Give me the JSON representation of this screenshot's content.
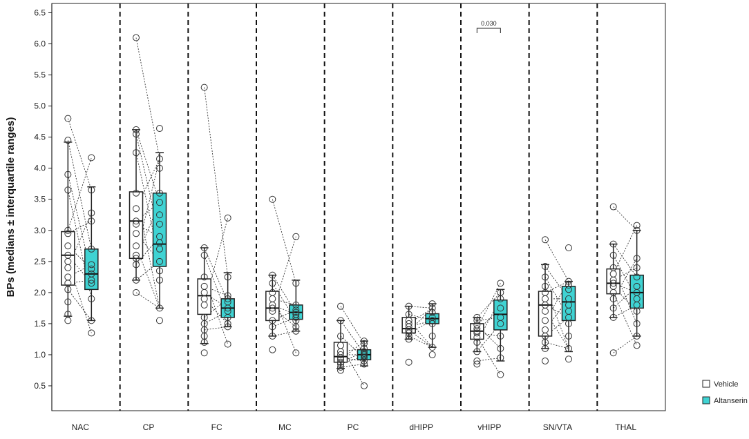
{
  "chart_data": {
    "type": "box",
    "ylabel": "BPs (medians ± interquartile ranges)",
    "ylim": [
      0.1,
      6.65
    ],
    "yticks": [
      "0.5",
      "1.0",
      "1.5",
      "2.0",
      "2.5",
      "3.0",
      "3.5",
      "4.0",
      "4.5",
      "5.0",
      "5.5",
      "6.0",
      "6.5"
    ],
    "grid": false,
    "legend_position": "bottom-right",
    "series": [
      {
        "name": "Vehicle",
        "color": "#ffffff"
      },
      {
        "name": "Altanserin",
        "color": "#3fd3d3"
      }
    ],
    "categories": [
      "NAC",
      "CP",
      "FC",
      "MC",
      "PC",
      "dHIPP",
      "vHIPP",
      "SN/VTA",
      "THAL"
    ],
    "groups": [
      {
        "category": "NAC",
        "vehicle": {
          "whisker_low": 1.62,
          "q1": 2.12,
          "median": 2.6,
          "q3": 2.98,
          "whisker_high": 4.42,
          "points": [
            4.8,
            4.45,
            3.9,
            3.65,
            3.0,
            2.95,
            2.75,
            2.6,
            2.5,
            2.4,
            2.25,
            2.15,
            2.05,
            1.85,
            1.65,
            1.55
          ]
        },
        "altanserin": {
          "whisker_low": 1.55,
          "q1": 2.05,
          "median": 2.3,
          "q3": 2.7,
          "whisker_high": 3.7,
          "points": [
            4.17,
            3.65,
            3.28,
            3.15,
            2.7,
            2.45,
            2.38,
            2.3,
            2.2,
            2.15,
            1.9,
            1.55,
            1.35
          ]
        }
      },
      {
        "category": "CP",
        "vehicle": {
          "whisker_low": 2.2,
          "q1": 2.55,
          "median": 3.15,
          "q3": 3.62,
          "whisker_high": 4.62,
          "points": [
            6.1,
            4.62,
            4.55,
            4.25,
            3.6,
            3.35,
            3.15,
            3.1,
            2.95,
            2.75,
            2.6,
            2.55,
            2.45,
            2.2,
            2.0
          ]
        },
        "altanserin": {
          "whisker_low": 1.75,
          "q1": 2.42,
          "median": 2.78,
          "q3": 3.6,
          "whisker_high": 4.25,
          "points": [
            4.64,
            4.15,
            4.0,
            3.6,
            3.45,
            3.25,
            3.1,
            2.9,
            2.8,
            2.7,
            2.5,
            2.35,
            2.2,
            1.75,
            1.55
          ]
        }
      },
      {
        "category": "FC",
        "vehicle": {
          "whisker_low": 1.18,
          "q1": 1.65,
          "median": 1.95,
          "q3": 2.22,
          "whisker_high": 2.72,
          "points": [
            5.3,
            2.72,
            2.6,
            2.25,
            2.1,
            2.0,
            1.9,
            1.8,
            1.6,
            1.5,
            1.4,
            1.3,
            1.2,
            1.03
          ]
        },
        "altanserin": {
          "whisker_low": 1.45,
          "q1": 1.6,
          "median": 1.75,
          "q3": 1.9,
          "whisker_high": 2.32,
          "points": [
            3.2,
            2.25,
            1.95,
            1.9,
            1.85,
            1.75,
            1.7,
            1.6,
            1.5,
            1.45,
            1.17
          ]
        }
      },
      {
        "category": "MC",
        "vehicle": {
          "whisker_low": 1.3,
          "q1": 1.55,
          "median": 1.75,
          "q3": 2.02,
          "whisker_high": 2.28,
          "points": [
            3.5,
            2.28,
            2.15,
            2.0,
            1.9,
            1.8,
            1.75,
            1.7,
            1.55,
            1.45,
            1.3,
            1.08
          ]
        },
        "altanserin": {
          "whisker_low": 1.38,
          "q1": 1.57,
          "median": 1.68,
          "q3": 1.8,
          "whisker_high": 2.2,
          "points": [
            2.9,
            2.15,
            1.8,
            1.72,
            1.68,
            1.65,
            1.6,
            1.55,
            1.45,
            1.38,
            1.03
          ]
        }
      },
      {
        "category": "PC",
        "vehicle": {
          "whisker_low": 0.78,
          "q1": 0.88,
          "median": 0.97,
          "q3": 1.2,
          "whisker_high": 1.55,
          "points": [
            1.78,
            1.55,
            1.3,
            1.15,
            1.05,
            1.0,
            0.95,
            0.92,
            0.88,
            0.85,
            0.8,
            0.75
          ]
        },
        "altanserin": {
          "whisker_low": 0.82,
          "q1": 0.92,
          "median": 1.0,
          "q3": 1.08,
          "whisker_high": 1.22,
          "points": [
            1.22,
            1.18,
            1.1,
            1.05,
            1.02,
            1.0,
            0.98,
            0.95,
            0.9,
            0.85,
            0.5
          ]
        }
      },
      {
        "category": "dHIPP",
        "vehicle": {
          "whisker_low": 1.25,
          "q1": 1.35,
          "median": 1.42,
          "q3": 1.6,
          "whisker_high": 1.78,
          "points": [
            1.78,
            1.65,
            1.55,
            1.5,
            1.45,
            1.4,
            1.38,
            1.35,
            1.3,
            1.25,
            0.88
          ]
        },
        "altanserin": {
          "whisker_low": 1.12,
          "q1": 1.5,
          "median": 1.58,
          "q3": 1.66,
          "whisker_high": 1.82,
          "points": [
            1.82,
            1.75,
            1.68,
            1.6,
            1.55,
            1.5,
            1.3,
            1.12,
            1.0
          ]
        }
      },
      {
        "category": "vHIPP",
        "vehicle": {
          "whisker_low": 1.05,
          "q1": 1.25,
          "median": 1.38,
          "q3": 1.5,
          "whisker_high": 1.6,
          "points": [
            1.6,
            1.55,
            1.48,
            1.42,
            1.38,
            1.35,
            1.28,
            1.2,
            1.05,
            0.9,
            0.85
          ]
        },
        "altanserin": {
          "whisker_low": 0.9,
          "q1": 1.4,
          "median": 1.65,
          "q3": 1.88,
          "whisker_high": 2.05,
          "points": [
            2.15,
            2.0,
            1.9,
            1.75,
            1.6,
            1.5,
            1.3,
            1.1,
            0.95,
            0.68
          ]
        }
      },
      {
        "category": "SN/VTA",
        "vehicle": {
          "whisker_low": 1.1,
          "q1": 1.3,
          "median": 1.8,
          "q3": 2.02,
          "whisker_high": 2.45,
          "points": [
            2.85,
            2.42,
            2.25,
            2.1,
            2.0,
            1.9,
            1.8,
            1.7,
            1.55,
            1.4,
            1.3,
            1.2,
            1.1,
            0.9
          ]
        },
        "altanserin": {
          "whisker_low": 1.05,
          "q1": 1.55,
          "median": 1.85,
          "q3": 2.1,
          "whisker_high": 2.18,
          "points": [
            2.72,
            2.18,
            2.12,
            2.05,
            1.9,
            1.8,
            1.7,
            1.6,
            1.5,
            1.3,
            1.1,
            0.93
          ]
        }
      },
      {
        "category": "THAL",
        "vehicle": {
          "whisker_low": 1.6,
          "q1": 1.98,
          "median": 2.15,
          "q3": 2.38,
          "whisker_high": 2.78,
          "points": [
            3.38,
            2.78,
            2.6,
            2.4,
            2.3,
            2.2,
            2.15,
            2.1,
            2.0,
            1.9,
            1.75,
            1.6,
            1.03
          ]
        },
        "altanserin": {
          "whisker_low": 1.3,
          "q1": 1.75,
          "median": 2.0,
          "q3": 2.28,
          "whisker_high": 3.0,
          "points": [
            3.08,
            3.0,
            2.55,
            2.4,
            2.25,
            2.1,
            2.0,
            1.9,
            1.8,
            1.7,
            1.5,
            1.3,
            1.15
          ]
        }
      }
    ],
    "annotations": [
      {
        "category": "vHIPP",
        "text": "0.030",
        "y": 6.25
      }
    ]
  }
}
